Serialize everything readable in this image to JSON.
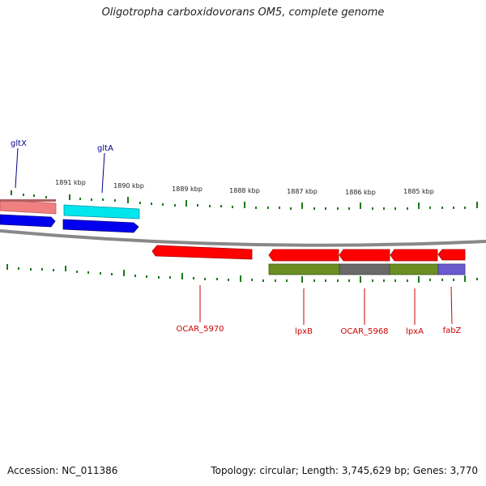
{
  "title": "Oligotropha carboxidovorans OM5, complete genome",
  "footer": {
    "accession": "Accession: NC_011386",
    "summary": "Topology: circular; Length: 3,745,629 bp; Genes: 3,770"
  },
  "ruler": {
    "labels": [
      "1891 kbp",
      "1890 kbp",
      "1889 kbp",
      "1888 kbp",
      "1887 kbp",
      "1886 kbp",
      "1885 kbp"
    ]
  },
  "genes": {
    "top": [
      {
        "name": "gltX",
        "color": "#00008b"
      },
      {
        "name": "gltA",
        "color": "#00008b"
      }
    ],
    "bottom": [
      {
        "name": "OCAR_5970",
        "color": "#cc0000"
      },
      {
        "name": "lpxB",
        "color": "#cc0000"
      },
      {
        "name": "OCAR_5968",
        "color": "#cc0000"
      },
      {
        "name": "lpxA",
        "color": "#cc0000"
      },
      {
        "name": "fabZ",
        "color": "#cc0000"
      }
    ]
  },
  "colors": {
    "backbone": "#888888",
    "tick": "#1a7a1a",
    "gene_red": "#ff0000",
    "gene_blue": "#0000ee",
    "gene_cyan": "#00e5ee",
    "gene_pink": "#f08080",
    "cog_green": "#6b8e23",
    "cog_grey": "#696969",
    "cog_purple": "#6a5acd"
  }
}
